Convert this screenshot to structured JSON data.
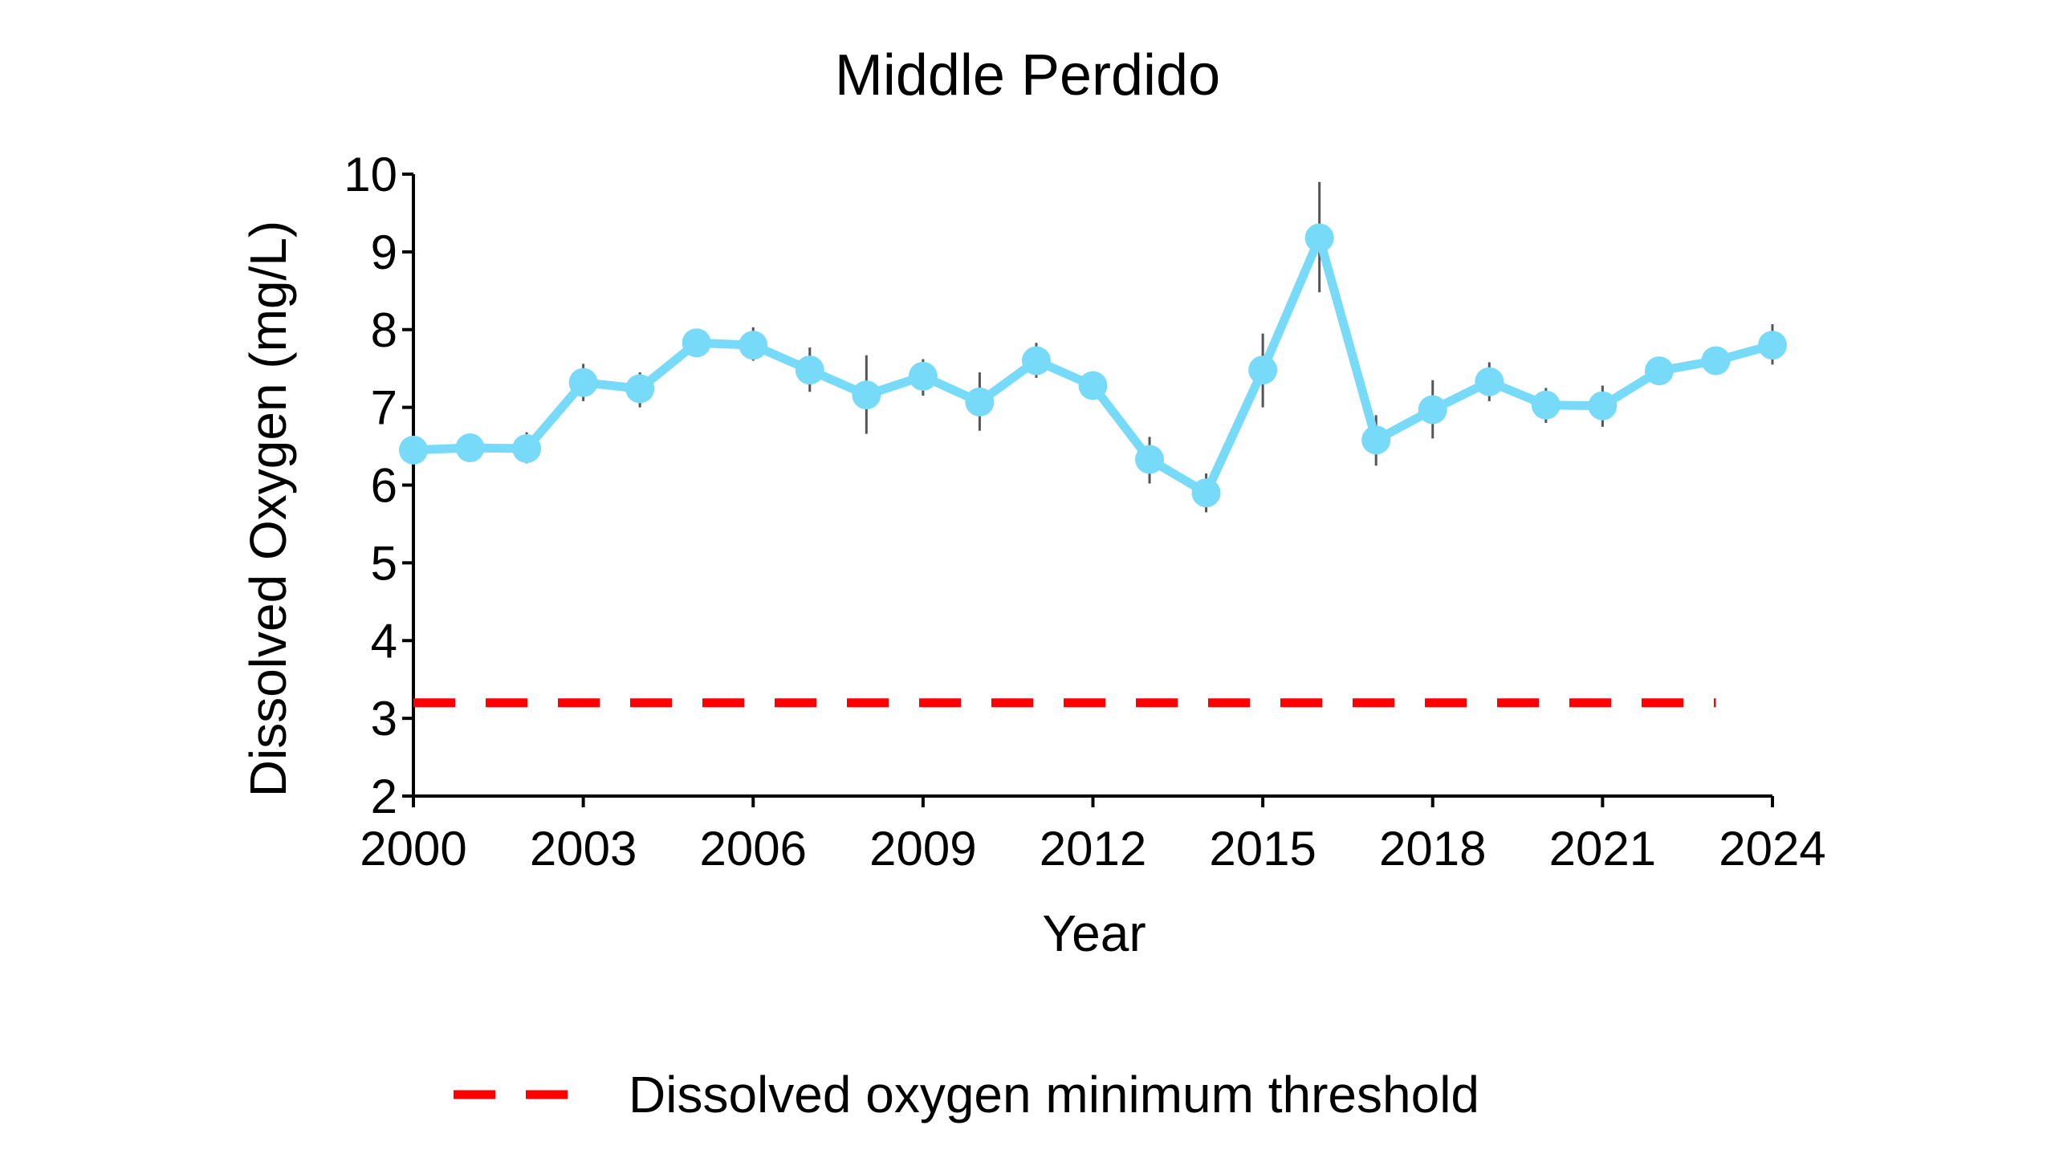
{
  "chart_data": {
    "type": "line",
    "title": "Middle Perdido",
    "xlabel": "Year",
    "ylabel": "Dissolved Oxygen (mg/L)",
    "xlim": [
      2000,
      2024
    ],
    "ylim": [
      2,
      10
    ],
    "x_ticks": [
      2000,
      2003,
      2006,
      2009,
      2012,
      2015,
      2018,
      2021,
      2024
    ],
    "y_ticks": [
      2,
      3,
      4,
      5,
      6,
      7,
      8,
      9,
      10
    ],
    "grid": false,
    "series": [
      {
        "color": "#77DAF8",
        "x": [
          2000,
          2001,
          2002,
          2003,
          2004,
          2005,
          2006,
          2007,
          2008,
          2009,
          2010,
          2011,
          2012,
          2013,
          2014,
          2015,
          2016,
          2017,
          2018,
          2019,
          2020,
          2021,
          2022,
          2023,
          2024
        ],
        "y": [
          6.45,
          6.48,
          6.47,
          7.32,
          7.24,
          7.83,
          7.8,
          7.48,
          7.16,
          7.4,
          7.07,
          7.6,
          7.28,
          6.33,
          5.9,
          7.48,
          9.18,
          6.58,
          6.97,
          7.33,
          7.03,
          7.02,
          7.47,
          7.6,
          7.8
        ],
        "error_low": [
          6.35,
          6.38,
          6.28,
          7.08,
          7.0,
          7.75,
          7.6,
          7.2,
          6.66,
          7.15,
          6.7,
          7.38,
          7.15,
          6.02,
          5.65,
          7.0,
          8.48,
          6.25,
          6.6,
          7.08,
          6.8,
          6.75,
          7.3,
          7.5,
          7.55
        ],
        "error_high": [
          6.55,
          6.58,
          6.68,
          7.56,
          7.45,
          7.92,
          8.03,
          7.77,
          7.67,
          7.62,
          7.45,
          7.83,
          7.38,
          6.62,
          6.15,
          7.95,
          9.9,
          6.9,
          7.35,
          7.58,
          7.25,
          7.28,
          7.62,
          7.7,
          8.07
        ]
      }
    ],
    "threshold": {
      "name": "Dissolved oxygen minimum threshold",
      "y": 3.2,
      "x_start": 2000,
      "x_end": 2023,
      "color": "#FF0000",
      "style": "dashed"
    },
    "legend": {
      "placement": "bottom-center",
      "entries": [
        "Dissolved oxygen minimum threshold"
      ]
    }
  }
}
